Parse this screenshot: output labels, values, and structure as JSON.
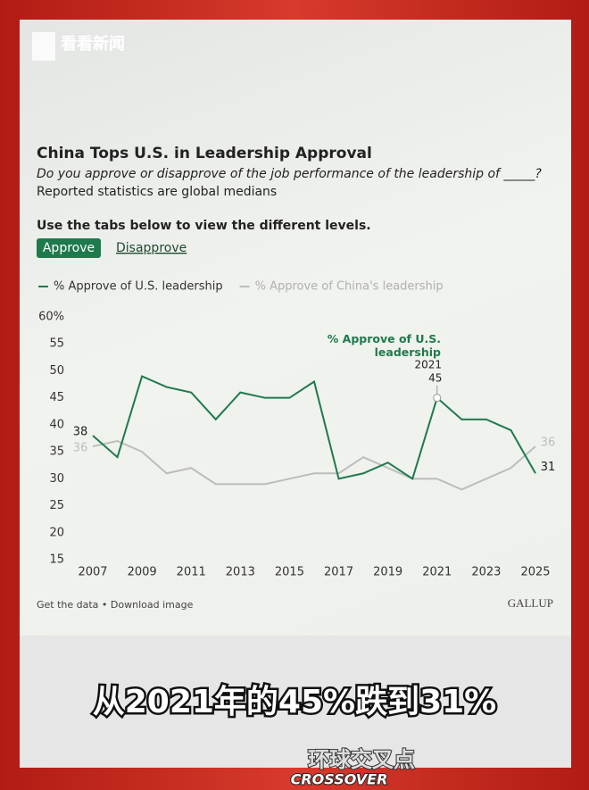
{
  "header": {
    "logo": "看看新闻"
  },
  "chart_data": {
    "type": "line",
    "title": "China Tops U.S. in Leadership Approval",
    "subtitle": "Do you approve or disapprove of the job performance of the leadership of _____?",
    "note": "Reported statistics are global medians",
    "instruction": "Use the tabs below to view the different levels.",
    "tabs": [
      "Approve",
      "Disapprove"
    ],
    "x": [
      2007,
      2008,
      2009,
      2010,
      2011,
      2012,
      2013,
      2014,
      2015,
      2016,
      2017,
      2018,
      2019,
      2020,
      2021,
      2022,
      2023,
      2024,
      2025
    ],
    "xlim": [
      2007,
      2025
    ],
    "xticks": [
      2007,
      2009,
      2011,
      2013,
      2015,
      2017,
      2019,
      2021,
      2023,
      2025
    ],
    "ylim": [
      15,
      60
    ],
    "yticks": [
      15,
      20,
      25,
      30,
      35,
      40,
      45,
      50,
      55,
      {
        "value": 60,
        "label": "60%"
      }
    ],
    "grid": false,
    "series": [
      {
        "name": "% Approve of U.S. leadership",
        "color": "#1e7a4c",
        "values": [
          38,
          34,
          49,
          47,
          46,
          41,
          46,
          45,
          45,
          48,
          30,
          31,
          33,
          30,
          45,
          41,
          41,
          39,
          31
        ]
      },
      {
        "name": "% Approve of China's leadership",
        "color": "#bdbdbd",
        "values": [
          36,
          37,
          35,
          31,
          32,
          29,
          29,
          29,
          30,
          31,
          31,
          34,
          32,
          30,
          30,
          28,
          30,
          32,
          36
        ]
      }
    ],
    "annotation": {
      "text": "% Approve of U.S. leadership"
    }
  },
  "footer": {
    "links": "Get the data • Download image",
    "brand": "GALLUP"
  },
  "caption": "从2021年的45%跌到31%",
  "show": {
    "name": "环球交叉点",
    "sub": "CROSSOVER"
  }
}
